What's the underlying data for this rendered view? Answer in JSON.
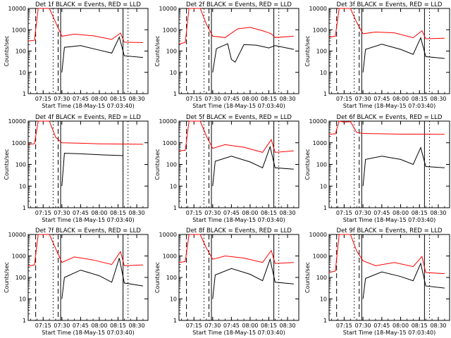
{
  "figure": {
    "background": "#ffffff",
    "axis_color": "#000000",
    "event_color": "#000000",
    "lld_color": "#ff0000",
    "panel_count": 9
  },
  "chart_data": [
    {
      "type": "line",
      "title": "Det 1f BLACK = Events, RED = LLD",
      "xlabel": "Start Time (18-May-15 07:03:40)",
      "ylabel": "Counts/sec",
      "x_ticks": [
        "07:15",
        "07:30",
        "07:45",
        "08:00",
        "08:15",
        "08:30"
      ],
      "y_ticks": [
        "1",
        "10",
        "100",
        "1000",
        "10000"
      ],
      "ylim": [
        1,
        10000
      ],
      "y_scale": "log",
      "grid": false,
      "markers": {
        "dashed": [
          "07:09",
          "07:27"
        ],
        "dotted": [
          "07:23",
          "08:23"
        ],
        "solid": [
          "07:29",
          "08:19"
        ]
      },
      "series": [
        {
          "color": "red",
          "x": [
            "07:03",
            "07:08",
            "07:11",
            "07:20",
            "07:25",
            "07:30",
            "07:40",
            "07:55",
            "08:10",
            "08:17",
            "08:20",
            "08:35"
          ],
          "y": [
            300,
            320,
            10000,
            10000,
            2200,
            500,
            620,
            520,
            350,
            700,
            260,
            250
          ]
        },
        {
          "color": "black",
          "x": [
            "07:30",
            "07:32",
            "07:45",
            "08:00",
            "08:10",
            "08:16",
            "08:20",
            "08:35"
          ],
          "y": [
            10,
            150,
            180,
            110,
            80,
            450,
            60,
            50
          ]
        }
      ]
    },
    {
      "type": "line",
      "title": "Det 2f BLACK = Events, RED = LLD",
      "xlabel": "Start Time (18-May-15 07:03:40)",
      "ylabel": "Counts/sec",
      "x_ticks": [
        "07:15",
        "07:30",
        "07:45",
        "08:00",
        "08:15",
        "08:30"
      ],
      "y_ticks": [
        "1",
        "10",
        "100",
        "1000",
        "10000"
      ],
      "ylim": [
        1,
        10000
      ],
      "y_scale": "log",
      "grid": false,
      "markers": {
        "dashed": [
          "07:09",
          "07:27"
        ],
        "dotted": [
          "07:23",
          "08:23"
        ],
        "solid": [
          "07:29",
          "08:19"
        ]
      },
      "series": [
        {
          "color": "red",
          "x": [
            "07:03",
            "07:08",
            "07:11",
            "07:20",
            "07:25",
            "07:30",
            "07:40",
            "07:50",
            "08:00",
            "08:10",
            "08:17",
            "08:20",
            "08:35"
          ],
          "y": [
            220,
            250,
            10000,
            10000,
            1800,
            500,
            430,
            1100,
            1300,
            900,
            650,
            430,
            500
          ]
        },
        {
          "color": "black",
          "x": [
            "07:30",
            "07:33",
            "07:42",
            "07:45",
            "07:48",
            "07:55",
            "08:05",
            "08:15",
            "08:20",
            "08:35"
          ],
          "y": [
            10,
            130,
            220,
            40,
            30,
            200,
            190,
            140,
            180,
            120
          ]
        }
      ]
    },
    {
      "type": "line",
      "title": "Det 3f BLACK = Events, RED = LLD",
      "xlabel": "Start Time (18-May-15 07:03:40)",
      "ylabel": "Counts/sec",
      "x_ticks": [
        "07:15",
        "07:30",
        "07:45",
        "08:00",
        "08:15",
        "08:30"
      ],
      "y_ticks": [
        "1",
        "10",
        "100",
        "1000",
        "10000"
      ],
      "ylim": [
        1,
        10000
      ],
      "y_scale": "log",
      "grid": false,
      "markers": {
        "dashed": [
          "07:09",
          "07:27"
        ],
        "dotted": [
          "07:23",
          "08:23"
        ],
        "solid": [
          "07:29",
          "08:19"
        ]
      },
      "series": [
        {
          "color": "red",
          "x": [
            "07:03",
            "07:08",
            "07:11",
            "07:20",
            "07:25",
            "07:30",
            "07:40",
            "07:55",
            "08:10",
            "08:17",
            "08:20",
            "08:35"
          ],
          "y": [
            450,
            500,
            10000,
            10000,
            2200,
            650,
            780,
            720,
            420,
            900,
            380,
            400
          ]
        },
        {
          "color": "black",
          "x": [
            "07:30",
            "07:32",
            "07:45",
            "08:00",
            "08:10",
            "08:16",
            "08:20",
            "08:35"
          ],
          "y": [
            10,
            120,
            210,
            120,
            70,
            420,
            55,
            45
          ]
        }
      ]
    },
    {
      "type": "line",
      "title": "Det 4f BLACK = Events, RED = LLD",
      "xlabel": "Start Time (18-May-15 07:03:40)",
      "ylabel": "Counts/sec",
      "x_ticks": [
        "07:15",
        "07:30",
        "07:45",
        "08:00",
        "08:15",
        "08:30"
      ],
      "y_ticks": [
        "1",
        "10",
        "100",
        "1000",
        "10000"
      ],
      "ylim": [
        1,
        10000
      ],
      "y_scale": "log",
      "grid": false,
      "markers": {
        "dashed": [
          "07:09",
          "07:27"
        ],
        "dotted": [
          "07:23",
          "08:23"
        ],
        "solid": [
          "07:29",
          "08:19"
        ]
      },
      "series": [
        {
          "color": "red",
          "x": [
            "07:03",
            "07:08",
            "07:11",
            "07:20",
            "07:25",
            "07:30",
            "07:45",
            "08:00",
            "08:15",
            "08:35"
          ],
          "y": [
            850,
            900,
            10000,
            10000,
            1800,
            1000,
            950,
            900,
            880,
            850
          ]
        },
        {
          "color": "black",
          "x": [
            "07:30",
            "07:32",
            "07:45",
            "08:00",
            "08:15",
            "08:19"
          ],
          "y": [
            10,
            330,
            310,
            280,
            260,
            255
          ]
        }
      ]
    },
    {
      "type": "line",
      "title": "Det 5f BLACK = Events, RED = LLD",
      "xlabel": "Start Time (18-May-15 07:03:40)",
      "ylabel": "Counts/sec",
      "x_ticks": [
        "07:15",
        "07:30",
        "07:45",
        "08:00",
        "08:15",
        "08:30"
      ],
      "y_ticks": [
        "1",
        "10",
        "100",
        "1000",
        "10000"
      ],
      "ylim": [
        1,
        10000
      ],
      "y_scale": "log",
      "grid": false,
      "markers": {
        "dashed": [
          "07:09",
          "07:27"
        ],
        "dotted": [
          "07:23",
          "08:23"
        ],
        "solid": [
          "07:29",
          "08:19"
        ]
      },
      "series": [
        {
          "color": "red",
          "x": [
            "07:03",
            "07:08",
            "07:11",
            "07:20",
            "07:25",
            "07:30",
            "07:40",
            "07:55",
            "08:10",
            "08:17",
            "08:20",
            "08:35"
          ],
          "y": [
            420,
            450,
            10000,
            10000,
            2000,
            550,
            820,
            620,
            360,
            1400,
            360,
            420
          ]
        },
        {
          "color": "black",
          "x": [
            "07:30",
            "07:32",
            "07:45",
            "08:00",
            "08:10",
            "08:16",
            "08:20",
            "08:35"
          ],
          "y": [
            10,
            140,
            240,
            130,
            70,
            650,
            70,
            60
          ]
        }
      ]
    },
    {
      "type": "line",
      "title": "Det 6f BLACK = Events, RED = LLD",
      "xlabel": "Start Time (18-May-15 07:03:40)",
      "ylabel": "Counts/sec",
      "x_ticks": [
        "07:15",
        "07:30",
        "07:45",
        "08:00",
        "08:15",
        "08:30"
      ],
      "y_ticks": [
        "1",
        "10",
        "100",
        "1000",
        "10000"
      ],
      "ylim": [
        1,
        10000
      ],
      "y_scale": "log",
      "grid": false,
      "markers": {
        "dashed": [
          "07:09",
          "07:27"
        ],
        "dotted": [
          "07:23",
          "08:23"
        ],
        "solid": [
          "07:29",
          "08:19"
        ]
      },
      "series": [
        {
          "color": "red",
          "x": [
            "07:03",
            "07:08",
            "07:11",
            "07:15",
            "07:20",
            "07:25",
            "07:30",
            "07:45",
            "08:00",
            "08:15",
            "08:35"
          ],
          "y": [
            2500,
            2600,
            10000,
            9000,
            9500,
            3000,
            2700,
            2600,
            2500,
            2500,
            2450
          ]
        },
        {
          "color": "black",
          "x": [
            "07:30",
            "07:32",
            "07:45",
            "08:00",
            "08:10",
            "08:16",
            "08:20",
            "08:35"
          ],
          "y": [
            10,
            170,
            240,
            170,
            100,
            600,
            80,
            70
          ]
        }
      ]
    },
    {
      "type": "line",
      "title": "Det 7f BLACK = Events, RED = LLD",
      "xlabel": "Start Time (18-May-15 07:03:40)",
      "ylabel": "Counts/sec",
      "x_ticks": [
        "07:15",
        "07:30",
        "07:45",
        "08:00",
        "08:15",
        "08:30"
      ],
      "y_ticks": [
        "1",
        "10",
        "100",
        "1000",
        "10000"
      ],
      "ylim": [
        1,
        10000
      ],
      "y_scale": "log",
      "grid": false,
      "markers": {
        "dashed": [
          "07:09",
          "07:27"
        ],
        "dotted": [
          "07:23",
          "08:23"
        ],
        "solid": [
          "07:29",
          "08:19"
        ]
      },
      "series": [
        {
          "color": "red",
          "x": [
            "07:03",
            "07:08",
            "07:11",
            "07:20",
            "07:25",
            "07:30",
            "07:40",
            "07:55",
            "08:10",
            "08:17",
            "08:20",
            "08:35"
          ],
          "y": [
            340,
            380,
            10000,
            10000,
            2200,
            500,
            900,
            650,
            400,
            1600,
            350,
            380
          ]
        },
        {
          "color": "black",
          "x": [
            "07:30",
            "07:32",
            "07:45",
            "08:00",
            "08:10",
            "08:16",
            "08:20",
            "08:35"
          ],
          "y": [
            10,
            100,
            220,
            120,
            60,
            800,
            55,
            40
          ]
        }
      ]
    },
    {
      "type": "line",
      "title": "Det 8f BLACK = Events, RED = LLD",
      "xlabel": "Start Time (18-May-15 07:03:40)",
      "ylabel": "Counts/sec",
      "x_ticks": [
        "07:15",
        "07:30",
        "07:45",
        "08:00",
        "08:15",
        "08:30"
      ],
      "y_ticks": [
        "1",
        "10",
        "100",
        "1000",
        "10000"
      ],
      "ylim": [
        1,
        10000
      ],
      "y_scale": "log",
      "grid": false,
      "markers": {
        "dashed": [
          "07:09",
          "07:27"
        ],
        "dotted": [
          "07:23",
          "08:23"
        ],
        "solid": [
          "07:29",
          "08:19"
        ]
      },
      "series": [
        {
          "color": "red",
          "x": [
            "07:03",
            "07:08",
            "07:11",
            "07:20",
            "07:25",
            "07:30",
            "07:40",
            "07:55",
            "08:10",
            "08:17",
            "08:20",
            "08:35"
          ],
          "y": [
            500,
            550,
            10000,
            10000,
            2300,
            700,
            1000,
            800,
            500,
            1800,
            450,
            500
          ]
        },
        {
          "color": "black",
          "x": [
            "07:30",
            "07:32",
            "07:45",
            "08:00",
            "08:10",
            "08:16",
            "08:20",
            "08:35"
          ],
          "y": [
            10,
            130,
            260,
            140,
            70,
            700,
            60,
            50
          ]
        }
      ]
    },
    {
      "type": "line",
      "title": "Det 9f BLACK = Events, RED = LLD",
      "xlabel": "Start Time (18-May-15 07:03:40)",
      "ylabel": "Counts/sec",
      "x_ticks": [
        "07:15",
        "07:30",
        "07:45",
        "08:00",
        "08:15",
        "08:30"
      ],
      "y_ticks": [
        "1",
        "10",
        "100",
        "1000",
        "10000"
      ],
      "ylim": [
        1,
        10000
      ],
      "y_scale": "log",
      "grid": false,
      "markers": {
        "dashed": [
          "07:09",
          "07:27"
        ],
        "dotted": [
          "07:23",
          "08:23"
        ],
        "solid": [
          "07:29",
          "08:19"
        ]
      },
      "series": [
        {
          "color": "red",
          "x": [
            "07:03",
            "07:08",
            "07:11",
            "07:20",
            "07:25",
            "07:30",
            "07:40",
            "07:55",
            "08:10",
            "08:17",
            "08:20",
            "08:35"
          ],
          "y": [
            170,
            200,
            10000,
            10000,
            1700,
            600,
            350,
            500,
            320,
            950,
            170,
            150
          ]
        },
        {
          "color": "black",
          "x": [
            "07:30",
            "07:32",
            "07:45",
            "08:00",
            "08:10",
            "08:16",
            "08:20",
            "08:35"
          ],
          "y": [
            10,
            90,
            180,
            110,
            70,
            450,
            40,
            32
          ]
        }
      ]
    }
  ]
}
